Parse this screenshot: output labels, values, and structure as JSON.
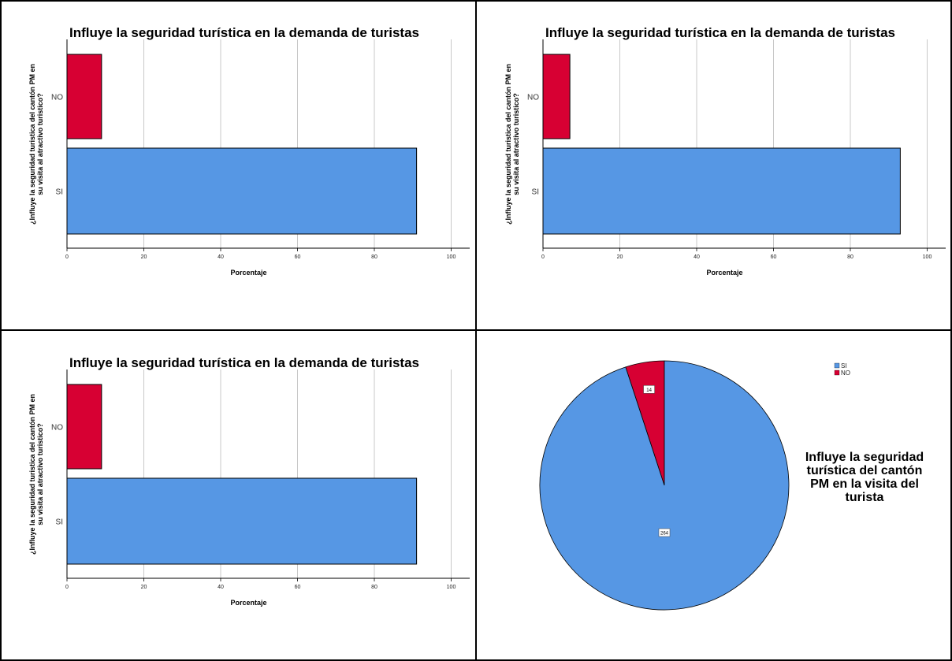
{
  "colors": {
    "si": "#5697e4",
    "no": "#d70033",
    "grid": "#c8c8c8",
    "border": "#000000"
  },
  "chart_data": [
    {
      "type": "bar",
      "orientation": "horizontal",
      "title": "Influye la seguridad turística en la demanda de turistas",
      "xlabel": "Porcentaje",
      "ylabel_lines": [
        "¿Influye la seguridad turistica del cantón PM en",
        "su visita al atractivo turistico?"
      ],
      "categories": [
        "NO",
        "SI"
      ],
      "values": [
        9,
        91
      ],
      "xlim": [
        0,
        105
      ],
      "xticks": [
        "0",
        "20",
        "40",
        "60",
        "80",
        "100"
      ],
      "grid": true
    },
    {
      "type": "bar",
      "orientation": "horizontal",
      "title": "Influye la seguridad turística en la demanda de turistas",
      "xlabel": "Porcentaje",
      "ylabel_lines": [
        "¿Influye la seguridad turistica del cantón PM en",
        "su visita al atractivo turistico?"
      ],
      "categories": [
        "NO",
        "SI"
      ],
      "values": [
        7,
        93
      ],
      "xlim": [
        0,
        105
      ],
      "xticks": [
        "0",
        "20",
        "40",
        "60",
        "80",
        "100"
      ],
      "grid": true
    },
    {
      "type": "bar",
      "orientation": "horizontal",
      "title": "Influye la seguridad turística en la demanda de turistas",
      "xlabel": "Porcentaje",
      "ylabel_lines": [
        "¿Influye la seguridad turistica del cantón PM en",
        "su visita al atractivo turistico?"
      ],
      "categories": [
        "NO",
        "SI"
      ],
      "values": [
        9,
        91
      ],
      "xlim": [
        0,
        105
      ],
      "xticks": [
        "0",
        "20",
        "40",
        "60",
        "80",
        "100"
      ],
      "grid": true
    },
    {
      "type": "pie",
      "title_lines": [
        "Influye la seguridad",
        "turística del cantón",
        "PM en la visita del",
        "turista"
      ],
      "categories": [
        "SI",
        "NO"
      ],
      "values": [
        264,
        14
      ],
      "data_labels": [
        "264",
        "14"
      ],
      "legend": "top-right"
    }
  ]
}
